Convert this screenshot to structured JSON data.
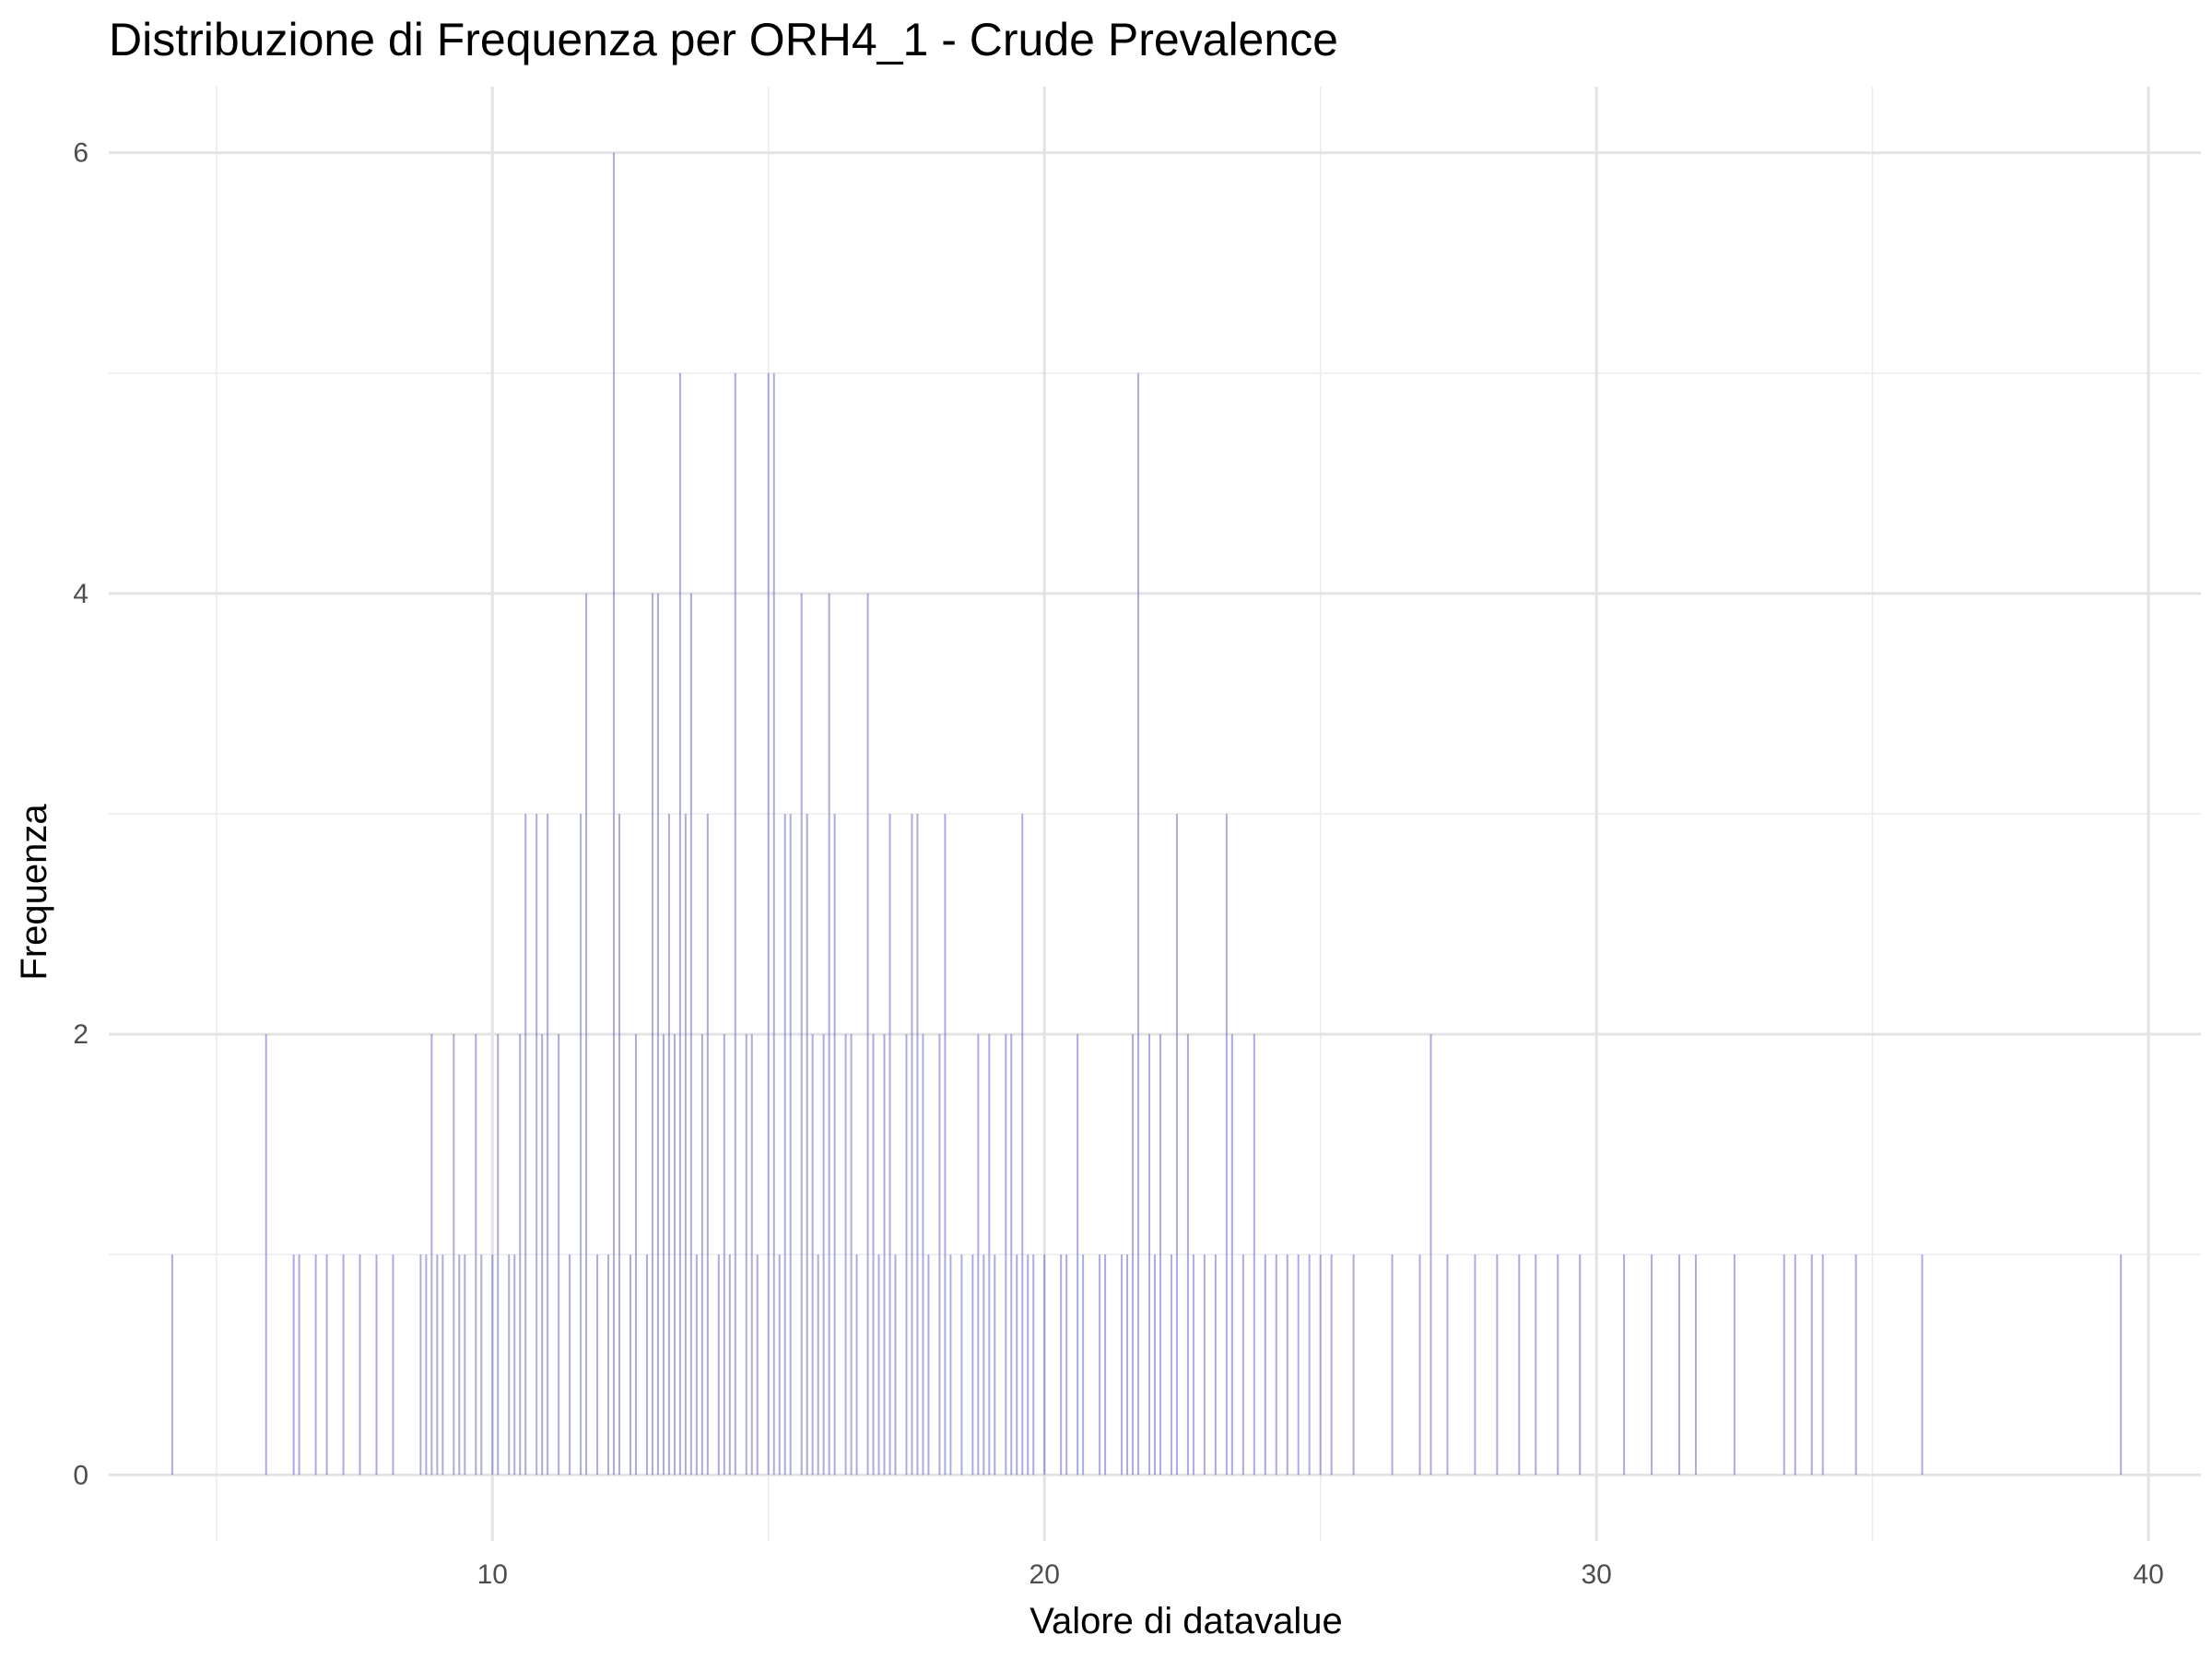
{
  "chart_data": {
    "type": "bar",
    "title": "Distribuzione di Frequenza per ORH4_1 - Crude Prevalence",
    "xlabel": "Valore di datavalue",
    "ylabel": "Frequenza",
    "xlim": [
      3.05,
      40.95
    ],
    "ylim": [
      -0.3,
      6.3
    ],
    "x_ticks": [
      10,
      20,
      30,
      40
    ],
    "x_minor_ticks": [
      5,
      15,
      25,
      35
    ],
    "y_ticks": [
      0,
      2,
      4,
      6
    ],
    "y_minor_ticks": [
      1,
      3,
      5
    ],
    "grid": true,
    "bar_color": "#6666cc",
    "bins": [
      {
        "x": 4.2,
        "count": 1
      },
      {
        "x": 5.9,
        "count": 2
      },
      {
        "x": 6.4,
        "count": 1
      },
      {
        "x": 6.5,
        "count": 1
      },
      {
        "x": 6.8,
        "count": 1
      },
      {
        "x": 7.0,
        "count": 1
      },
      {
        "x": 7.3,
        "count": 1
      },
      {
        "x": 7.6,
        "count": 1
      },
      {
        "x": 7.9,
        "count": 1
      },
      {
        "x": 8.2,
        "count": 1
      },
      {
        "x": 8.7,
        "count": 1
      },
      {
        "x": 8.8,
        "count": 1
      },
      {
        "x": 8.9,
        "count": 2
      },
      {
        "x": 9.0,
        "count": 1
      },
      {
        "x": 9.1,
        "count": 1
      },
      {
        "x": 9.3,
        "count": 2
      },
      {
        "x": 9.4,
        "count": 1
      },
      {
        "x": 9.5,
        "count": 1
      },
      {
        "x": 9.7,
        "count": 2
      },
      {
        "x": 9.8,
        "count": 1
      },
      {
        "x": 10.0,
        "count": 1
      },
      {
        "x": 10.1,
        "count": 2
      },
      {
        "x": 10.3,
        "count": 1
      },
      {
        "x": 10.4,
        "count": 1
      },
      {
        "x": 10.5,
        "count": 2
      },
      {
        "x": 10.6,
        "count": 3
      },
      {
        "x": 10.8,
        "count": 3
      },
      {
        "x": 10.9,
        "count": 2
      },
      {
        "x": 11.0,
        "count": 3
      },
      {
        "x": 11.2,
        "count": 2
      },
      {
        "x": 11.4,
        "count": 1
      },
      {
        "x": 11.6,
        "count": 3
      },
      {
        "x": 11.7,
        "count": 4
      },
      {
        "x": 11.9,
        "count": 1
      },
      {
        "x": 12.1,
        "count": 1
      },
      {
        "x": 12.2,
        "count": 6
      },
      {
        "x": 12.3,
        "count": 3
      },
      {
        "x": 12.5,
        "count": 1
      },
      {
        "x": 12.6,
        "count": 2
      },
      {
        "x": 12.8,
        "count": 1
      },
      {
        "x": 12.9,
        "count": 4
      },
      {
        "x": 13.0,
        "count": 4
      },
      {
        "x": 13.1,
        "count": 2
      },
      {
        "x": 13.2,
        "count": 3
      },
      {
        "x": 13.3,
        "count": 2
      },
      {
        "x": 13.4,
        "count": 5
      },
      {
        "x": 13.5,
        "count": 3
      },
      {
        "x": 13.6,
        "count": 4
      },
      {
        "x": 13.7,
        "count": 1
      },
      {
        "x": 13.8,
        "count": 2
      },
      {
        "x": 13.9,
        "count": 3
      },
      {
        "x": 14.1,
        "count": 1
      },
      {
        "x": 14.2,
        "count": 2
      },
      {
        "x": 14.3,
        "count": 1
      },
      {
        "x": 14.4,
        "count": 5
      },
      {
        "x": 14.6,
        "count": 2
      },
      {
        "x": 14.7,
        "count": 2
      },
      {
        "x": 14.8,
        "count": 1
      },
      {
        "x": 15.0,
        "count": 5
      },
      {
        "x": 15.1,
        "count": 5
      },
      {
        "x": 15.2,
        "count": 1
      },
      {
        "x": 15.3,
        "count": 3
      },
      {
        "x": 15.4,
        "count": 3
      },
      {
        "x": 15.6,
        "count": 4
      },
      {
        "x": 15.7,
        "count": 3
      },
      {
        "x": 15.8,
        "count": 2
      },
      {
        "x": 15.9,
        "count": 1
      },
      {
        "x": 16.0,
        "count": 2
      },
      {
        "x": 16.1,
        "count": 4
      },
      {
        "x": 16.2,
        "count": 3
      },
      {
        "x": 16.4,
        "count": 2
      },
      {
        "x": 16.5,
        "count": 2
      },
      {
        "x": 16.6,
        "count": 1
      },
      {
        "x": 16.8,
        "count": 4
      },
      {
        "x": 16.9,
        "count": 2
      },
      {
        "x": 17.0,
        "count": 1
      },
      {
        "x": 17.1,
        "count": 2
      },
      {
        "x": 17.2,
        "count": 3
      },
      {
        "x": 17.3,
        "count": 1
      },
      {
        "x": 17.5,
        "count": 2
      },
      {
        "x": 17.6,
        "count": 3
      },
      {
        "x": 17.7,
        "count": 3
      },
      {
        "x": 17.8,
        "count": 2
      },
      {
        "x": 17.9,
        "count": 1
      },
      {
        "x": 18.1,
        "count": 2
      },
      {
        "x": 18.2,
        "count": 3
      },
      {
        "x": 18.3,
        "count": 1
      },
      {
        "x": 18.5,
        "count": 1
      },
      {
        "x": 18.7,
        "count": 1
      },
      {
        "x": 18.8,
        "count": 2
      },
      {
        "x": 18.9,
        "count": 1
      },
      {
        "x": 19.0,
        "count": 2
      },
      {
        "x": 19.1,
        "count": 1
      },
      {
        "x": 19.3,
        "count": 2
      },
      {
        "x": 19.4,
        "count": 2
      },
      {
        "x": 19.5,
        "count": 1
      },
      {
        "x": 19.6,
        "count": 3
      },
      {
        "x": 19.7,
        "count": 1
      },
      {
        "x": 19.8,
        "count": 1
      },
      {
        "x": 20.0,
        "count": 1
      },
      {
        "x": 20.3,
        "count": 1
      },
      {
        "x": 20.4,
        "count": 1
      },
      {
        "x": 20.6,
        "count": 2
      },
      {
        "x": 20.7,
        "count": 1
      },
      {
        "x": 21.0,
        "count": 1
      },
      {
        "x": 21.1,
        "count": 1
      },
      {
        "x": 21.4,
        "count": 1
      },
      {
        "x": 21.5,
        "count": 1
      },
      {
        "x": 21.6,
        "count": 2
      },
      {
        "x": 21.7,
        "count": 5
      },
      {
        "x": 21.9,
        "count": 2
      },
      {
        "x": 22.0,
        "count": 1
      },
      {
        "x": 22.1,
        "count": 2
      },
      {
        "x": 22.3,
        "count": 1
      },
      {
        "x": 22.4,
        "count": 3
      },
      {
        "x": 22.6,
        "count": 2
      },
      {
        "x": 22.7,
        "count": 1
      },
      {
        "x": 22.9,
        "count": 1
      },
      {
        "x": 23.1,
        "count": 1
      },
      {
        "x": 23.3,
        "count": 3
      },
      {
        "x": 23.4,
        "count": 2
      },
      {
        "x": 23.6,
        "count": 1
      },
      {
        "x": 23.8,
        "count": 2
      },
      {
        "x": 24.0,
        "count": 1
      },
      {
        "x": 24.2,
        "count": 1
      },
      {
        "x": 24.4,
        "count": 1
      },
      {
        "x": 24.6,
        "count": 1
      },
      {
        "x": 24.8,
        "count": 1
      },
      {
        "x": 25.0,
        "count": 1
      },
      {
        "x": 25.2,
        "count": 1
      },
      {
        "x": 25.6,
        "count": 1
      },
      {
        "x": 26.3,
        "count": 1
      },
      {
        "x": 26.8,
        "count": 1
      },
      {
        "x": 27.0,
        "count": 2
      },
      {
        "x": 27.3,
        "count": 1
      },
      {
        "x": 27.8,
        "count": 1
      },
      {
        "x": 28.2,
        "count": 1
      },
      {
        "x": 28.6,
        "count": 1
      },
      {
        "x": 28.9,
        "count": 1
      },
      {
        "x": 29.3,
        "count": 1
      },
      {
        "x": 29.7,
        "count": 1
      },
      {
        "x": 30.5,
        "count": 1
      },
      {
        "x": 31.0,
        "count": 1
      },
      {
        "x": 31.5,
        "count": 1
      },
      {
        "x": 31.8,
        "count": 1
      },
      {
        "x": 32.5,
        "count": 1
      },
      {
        "x": 33.4,
        "count": 1
      },
      {
        "x": 33.6,
        "count": 1
      },
      {
        "x": 33.9,
        "count": 1
      },
      {
        "x": 34.1,
        "count": 1
      },
      {
        "x": 34.7,
        "count": 1
      },
      {
        "x": 35.9,
        "count": 1
      },
      {
        "x": 39.5,
        "count": 1
      }
    ]
  }
}
